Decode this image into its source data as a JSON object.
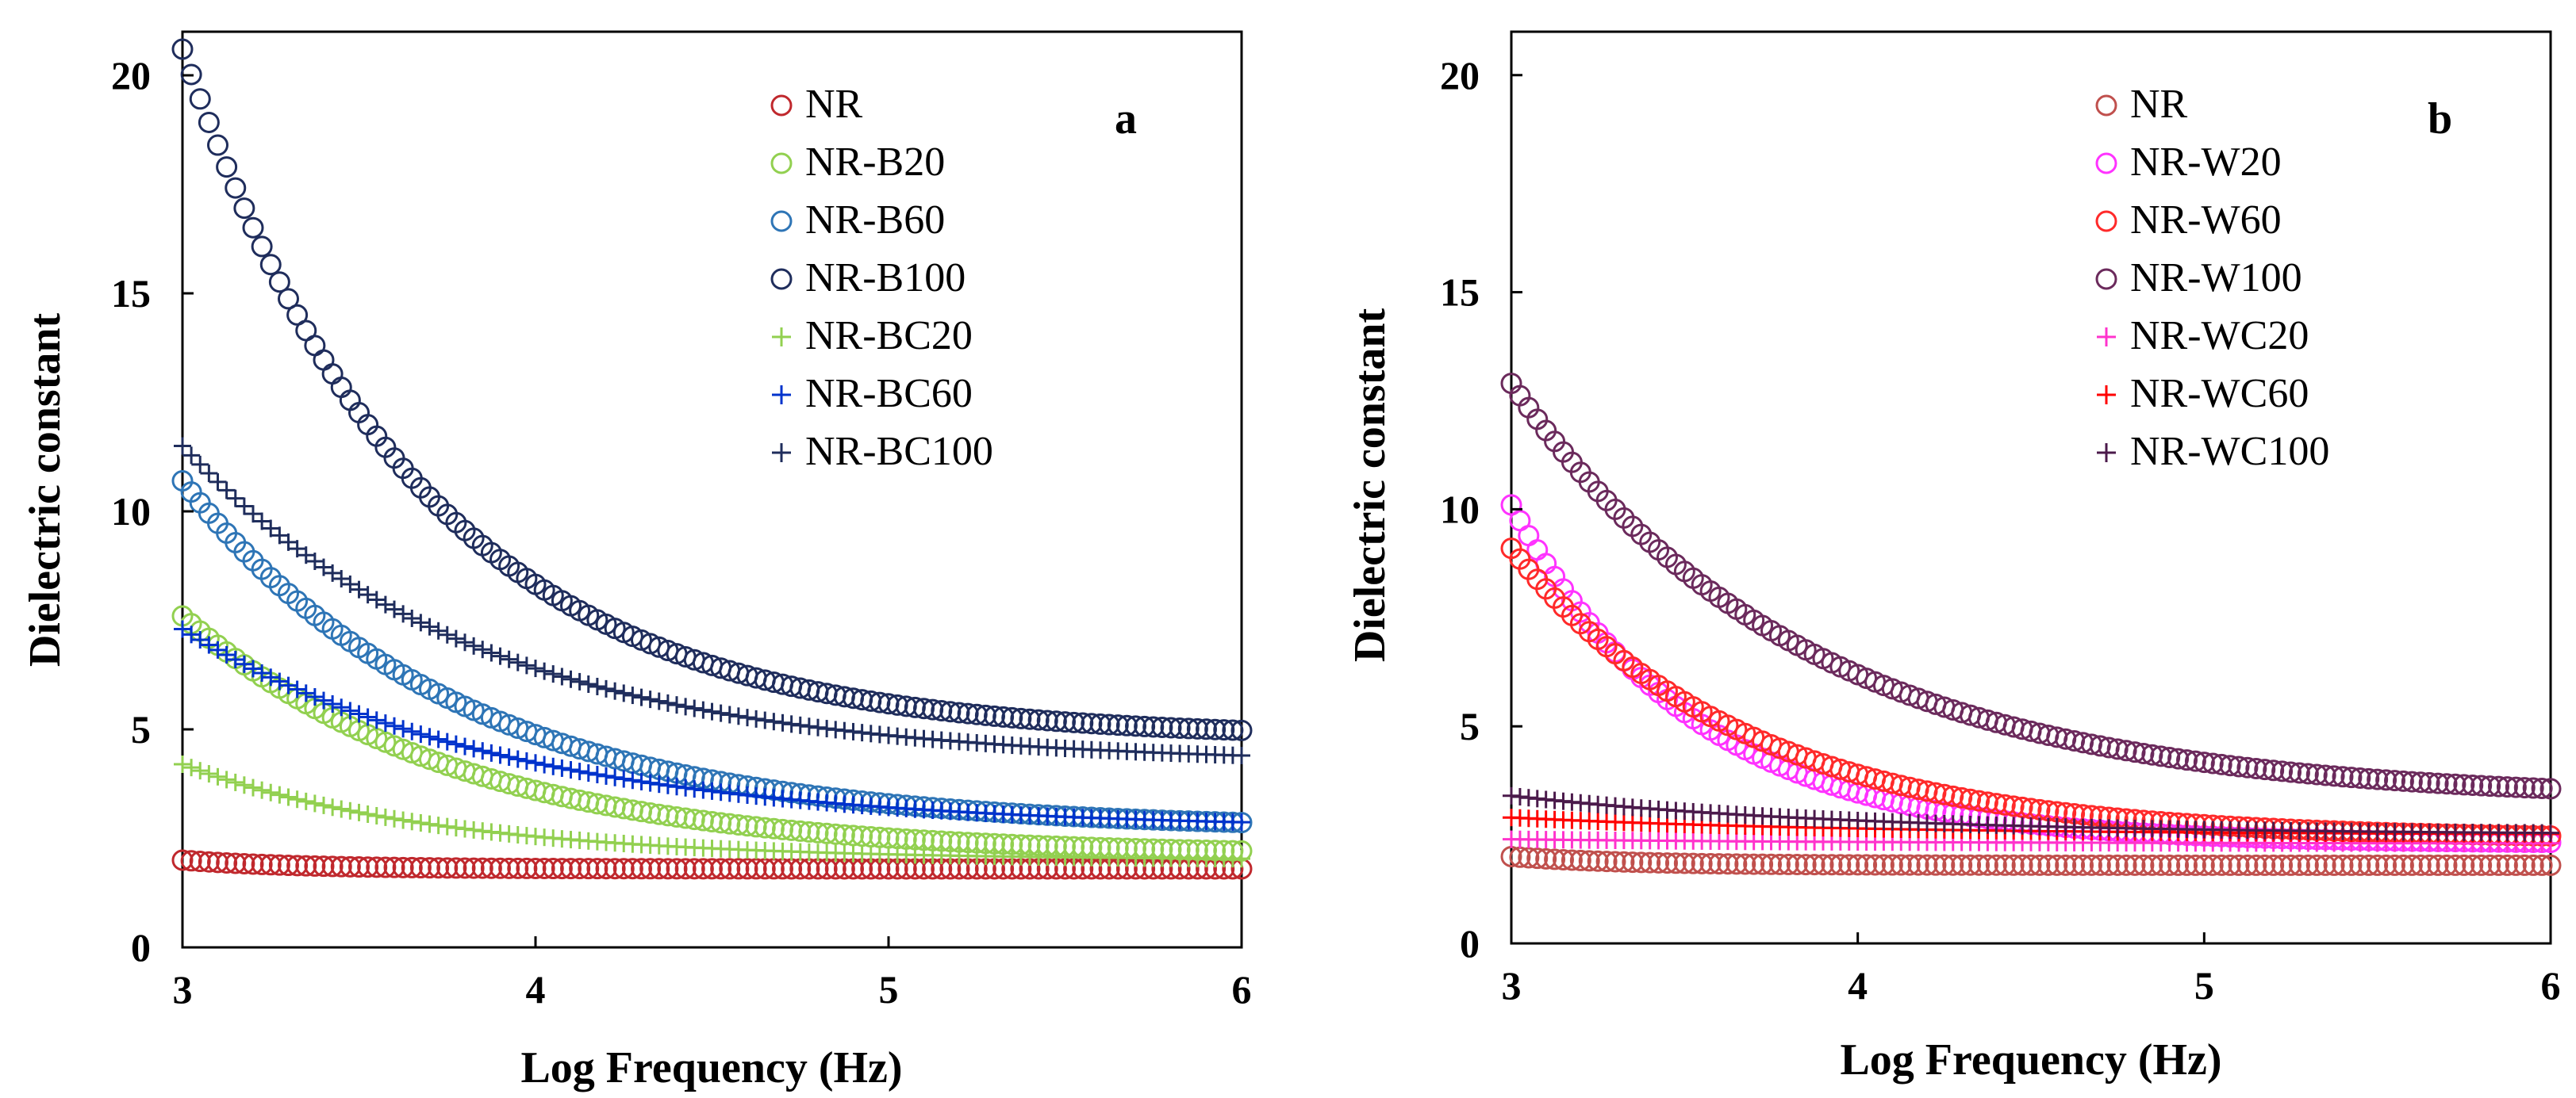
{
  "chart_data": [
    {
      "type": "scatter",
      "panel_label": "a",
      "xlabel": "Log Frequency (Hz)",
      "ylabel": "Dielectric constant",
      "xlim": [
        3,
        6
      ],
      "ylim": [
        0,
        21
      ],
      "x_ticks": [
        "3",
        "4",
        "5",
        "6"
      ],
      "y_ticks": [
        "0",
        "5",
        "10",
        "15",
        "20"
      ],
      "legend_position": "top-right",
      "series": [
        {
          "name": "NR",
          "marker": "circle",
          "color": "#c0282d",
          "start": 2.0,
          "end": 1.8,
          "decay": 3
        },
        {
          "name": "NR-B20",
          "marker": "circle",
          "color": "#92d050",
          "start": 7.6,
          "end": 2.1,
          "decay": 1.3
        },
        {
          "name": "NR-B60",
          "marker": "circle",
          "color": "#2e75b6",
          "start": 10.7,
          "end": 2.7,
          "decay": 1.3
        },
        {
          "name": "NR-B100",
          "marker": "circle",
          "color": "#1f2d5c",
          "start": 20.6,
          "end": 4.8,
          "decay": 1.5
        },
        {
          "name": "NR-BC20",
          "marker": "plus",
          "color": "#92d050",
          "start": 4.2,
          "end": 2.0,
          "decay": 1.4
        },
        {
          "name": "NR-BC60",
          "marker": "plus",
          "color": "#0033cc",
          "start": 7.3,
          "end": 2.7,
          "decay": 1.1
        },
        {
          "name": "NR-BC100",
          "marker": "plus",
          "color": "#1f2d5c",
          "start": 11.5,
          "end": 4.2,
          "decay": 1.2
        }
      ]
    },
    {
      "type": "scatter",
      "panel_label": "b",
      "xlabel": "Log Frequency (Hz)",
      "ylabel": "Dielectric constant",
      "xlim": [
        3,
        6
      ],
      "ylim": [
        0,
        21
      ],
      "x_ticks": [
        "3",
        "4",
        "5",
        "6"
      ],
      "y_ticks": [
        "0",
        "5",
        "10",
        "15",
        "20"
      ],
      "legend_position": "top-right",
      "series": [
        {
          "name": "NR",
          "marker": "circle",
          "color": "#c0504d",
          "start": 2.0,
          "end": 1.8,
          "decay": 3
        },
        {
          "name": "NR-W20",
          "marker": "circle",
          "color": "#ff33ff",
          "start": 10.1,
          "end": 2.3,
          "decay": 1.9
        },
        {
          "name": "NR-W60",
          "marker": "circle",
          "color": "#ff2a2a",
          "start": 9.1,
          "end": 2.4,
          "decay": 1.5
        },
        {
          "name": "NR-W100",
          "marker": "circle",
          "color": "#6b2a5c",
          "start": 12.9,
          "end": 3.3,
          "decay": 1.2
        },
        {
          "name": "NR-WC20",
          "marker": "plus",
          "color": "#ff33cc",
          "start": 2.4,
          "end": 2.3,
          "decay": 1
        },
        {
          "name": "NR-WC60",
          "marker": "plus",
          "color": "#ff0000",
          "start": 2.9,
          "end": 2.5,
          "decay": 1
        },
        {
          "name": "NR-WC100",
          "marker": "plus",
          "color": "#4b1a4b",
          "start": 3.4,
          "end": 2.5,
          "decay": 1
        }
      ]
    }
  ]
}
